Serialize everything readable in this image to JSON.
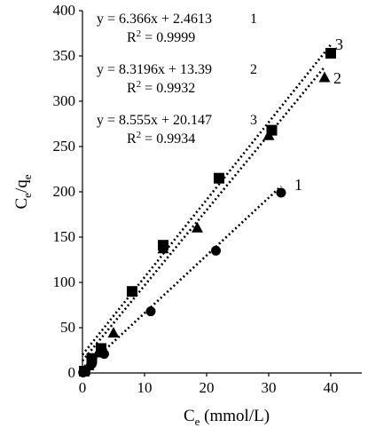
{
  "chart_data": {
    "type": "scatter",
    "x_axis": {
      "label": "C",
      "label_sub": "e",
      "label_suffix": " (mmol/L)",
      "lim": [
        0,
        45
      ],
      "ticks": [
        0,
        10,
        20,
        30,
        40
      ]
    },
    "y_axis": {
      "label": "C",
      "label_sub1": "e",
      "label_mid": "/q",
      "label_sub2": "e",
      "lim": [
        0,
        400
      ],
      "ticks": [
        0,
        50,
        100,
        150,
        200,
        250,
        300,
        350,
        400
      ]
    },
    "grid": false,
    "series": [
      {
        "name": "1",
        "marker": "circle",
        "points": [
          [
            0.1,
            0.5
          ],
          [
            0.5,
            3
          ],
          [
            1.5,
            10
          ],
          [
            3.5,
            21
          ],
          [
            11,
            68
          ],
          [
            21.5,
            135
          ],
          [
            32,
            199
          ]
        ],
        "trendline": {
          "x": [
            0,
            32
          ],
          "slope": 6.366,
          "intercept": 2.4613
        },
        "equation": "y = 6.366x + 2.4613",
        "r2": "0.9999"
      },
      {
        "name": "2",
        "marker": "triangle",
        "points": [
          [
            0.4,
            3
          ],
          [
            1,
            8
          ],
          [
            2.5,
            22
          ],
          [
            5,
            44
          ],
          [
            13,
            137
          ],
          [
            18.5,
            160
          ],
          [
            30,
            262
          ],
          [
            39,
            326
          ]
        ],
        "trendline": {
          "x": [
            0,
            39
          ],
          "slope": 8.3196,
          "intercept": 13.39
        },
        "equation": "y = 8.3196x + 13.39",
        "r2": "0.9932"
      },
      {
        "name": "3",
        "marker": "square",
        "points": [
          [
            0.3,
            2
          ],
          [
            1.5,
            16
          ],
          [
            3,
            27
          ],
          [
            8,
            90
          ],
          [
            13,
            141
          ],
          [
            22,
            215
          ],
          [
            30.5,
            268
          ],
          [
            40,
            353
          ]
        ],
        "trendline": {
          "x": [
            0,
            40
          ],
          "slope": 8.555,
          "intercept": 20.147
        },
        "equation": "y = 8.555x + 20.147",
        "r2": "0.9934"
      }
    ],
    "r2_prefix": "R",
    "r2_power": "2",
    "r2_eq": " = "
  }
}
